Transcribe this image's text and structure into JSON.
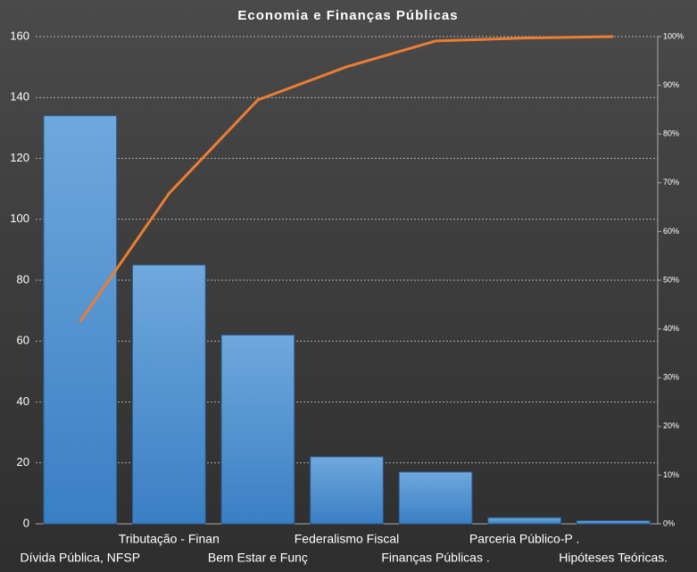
{
  "chart_data": {
    "type": "pareto",
    "title": "Economia e Finanças Públicas",
    "categories": [
      "Dívida Pública, NFSP",
      "Tributação - Finan",
      "Bem Estar e Funç",
      "Federalismo Fiscal",
      "Finanças Públicas .",
      "Parceria Público-P .",
      "Hipóteses Teóricas."
    ],
    "series": [
      {
        "type": "bar",
        "color": "#5b9bd5",
        "values": [
          134,
          85,
          62,
          22,
          17,
          2,
          1
        ]
      },
      {
        "type": "line",
        "axis": "y2",
        "color": "#ed7d31",
        "values": [
          41.5,
          67.8,
          87.0,
          93.8,
          99.1,
          99.7,
          100
        ]
      }
    ],
    "ylim": [
      0,
      160
    ],
    "yticks": [
      0,
      20,
      40,
      60,
      80,
      100,
      120,
      140,
      160
    ],
    "y2lim": [
      0,
      100
    ],
    "y2ticks": [
      {
        "value": 0,
        "label": "0%"
      },
      {
        "value": 10,
        "label": "10%"
      },
      {
        "value": 20,
        "label": "20%"
      },
      {
        "value": 30,
        "label": "30%"
      },
      {
        "value": 40,
        "label": "40%"
      },
      {
        "value": 50,
        "label": "50%"
      },
      {
        "value": 60,
        "label": "60%"
      },
      {
        "value": 70,
        "label": "70%"
      },
      {
        "value": 80,
        "label": "80%"
      },
      {
        "value": 90,
        "label": "90%"
      },
      {
        "value": 100,
        "label": "100%"
      }
    ],
    "grid": true
  }
}
